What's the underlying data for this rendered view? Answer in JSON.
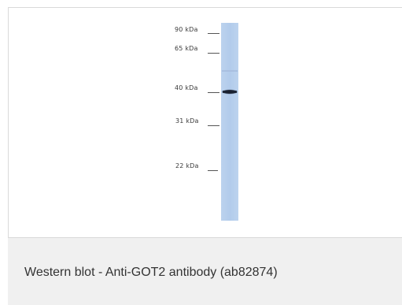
{
  "figure": {
    "markers": [
      {
        "label": "90 kDa"
      },
      {
        "label": "65 kDa"
      },
      {
        "label": "40 kDa"
      },
      {
        "label": "31 kDa"
      },
      {
        "label": "22 kDa"
      }
    ],
    "caption": "Western blot - Anti-GOT2 antibody (ab82874)"
  }
}
